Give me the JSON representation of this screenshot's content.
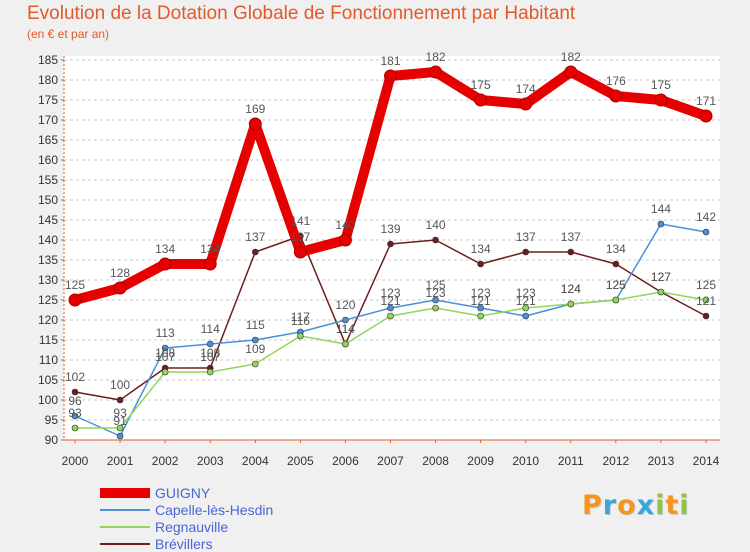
{
  "chart_data": {
    "type": "line",
    "title": "Evolution de la Dotation Globale de Fonctionnement par Habitant",
    "subtitle": "(en € et par an)",
    "categories": [
      "2000",
      "2001",
      "2002",
      "2003",
      "2004",
      "2005",
      "2006",
      "2007",
      "2008",
      "2009",
      "2010",
      "2011",
      "2012",
      "2013",
      "2014"
    ],
    "ylim": [
      90,
      185
    ],
    "yticks": [
      90,
      95,
      100,
      105,
      110,
      115,
      120,
      125,
      130,
      135,
      140,
      145,
      150,
      155,
      160,
      165,
      170,
      175,
      180,
      185
    ],
    "grid": "horizontal dashed",
    "legend_position": "bottom-left",
    "series": [
      {
        "name": "GUIGNY",
        "color": "#e60000",
        "values": [
          125,
          128,
          134,
          134,
          169,
          137,
          140,
          181,
          182,
          175,
          174,
          182,
          176,
          175,
          171
        ]
      },
      {
        "name": "Capelle-lès-Hesdin",
        "color": "#4a90d9",
        "values": [
          96,
          91,
          113,
          114,
          115,
          117,
          120,
          123,
          125,
          123,
          121,
          124,
          125,
          144,
          142
        ]
      },
      {
        "name": "Regnauville",
        "color": "#8fd65a",
        "values": [
          93,
          93,
          107,
          107,
          109,
          116,
          114,
          121,
          123,
          121,
          123,
          124,
          125,
          127,
          125
        ]
      },
      {
        "name": "Brévillers",
        "color": "#6b1e1e",
        "values": [
          102,
          100,
          108,
          108,
          137,
          141,
          114,
          139,
          140,
          134,
          137,
          137,
          134,
          127,
          121
        ]
      }
    ]
  },
  "logo": {
    "letters": [
      "P",
      "r",
      "o",
      "x",
      "i",
      "t",
      "i"
    ],
    "colors": [
      "#f7941d",
      "#3aa5dc",
      "#f7941d",
      "#3aa5dc",
      "#8dc63f",
      "#f7941d",
      "#8dc63f"
    ]
  }
}
